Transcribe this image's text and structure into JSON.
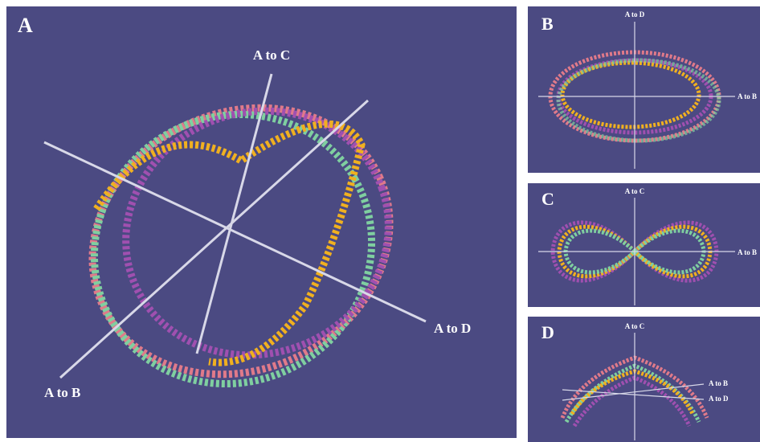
{
  "panels": [
    {
      "label": "A",
      "axes": [
        "A to C",
        "A to D",
        "A to B"
      ]
    },
    {
      "label": "B",
      "axes": [
        "A to D",
        "A to B"
      ]
    },
    {
      "label": "C",
      "axes": [
        "A to C",
        "A to B"
      ]
    },
    {
      "label": "D",
      "axes": [
        "A to C",
        "A to B",
        "A to D"
      ]
    }
  ]
}
